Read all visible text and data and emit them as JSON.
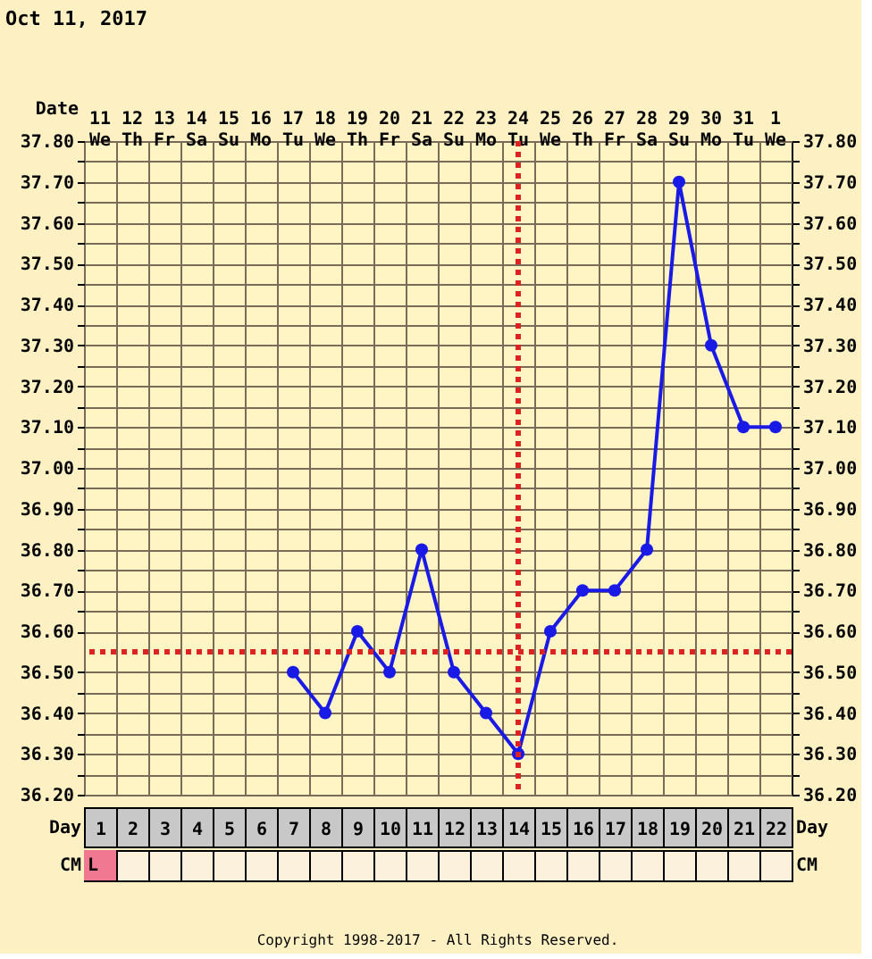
{
  "chart_data": {
    "type": "line",
    "title": "Oct 11, 2017",
    "categories": [
      "11 We",
      "12 Th",
      "13 Fr",
      "14 Sa",
      "15 Su",
      "16 Mo",
      "17 Tu",
      "18 We",
      "19 Th",
      "20 Fr",
      "21 Sa",
      "22 Su",
      "23 Mo",
      "24 Tu",
      "25 We",
      "26 Th",
      "27 Fr",
      "28 Sa",
      "29 Su",
      "30 Mo",
      "31 Tu",
      "1 We"
    ],
    "series": [
      {
        "color": "#1a1ae6",
        "values": [
          null,
          null,
          null,
          null,
          null,
          null,
          36.5,
          36.4,
          36.6,
          36.5,
          36.8,
          36.5,
          36.4,
          36.3,
          36.6,
          36.7,
          36.7,
          36.8,
          37.7,
          37.3,
          37.1,
          37.1
        ]
      }
    ],
    "ylim": [
      36.2,
      37.8
    ],
    "yticks": [
      {
        "value": 36.2,
        "label": "36.20"
      },
      {
        "value": 36.25,
        "label": null
      },
      {
        "value": 36.3,
        "label": "36.30"
      },
      {
        "value": 36.35,
        "label": null
      },
      {
        "value": 36.4,
        "label": "36.40"
      },
      {
        "value": 36.45,
        "label": null
      },
      {
        "value": 36.5,
        "label": "36.50"
      },
      {
        "value": 36.6,
        "label": "36.60"
      },
      {
        "value": 36.65,
        "label": null
      },
      {
        "value": 36.7,
        "label": "36.70"
      },
      {
        "value": 36.75,
        "label": null
      },
      {
        "value": 36.8,
        "label": "36.80"
      },
      {
        "value": 36.85,
        "label": null
      },
      {
        "value": 36.9,
        "label": "36.90"
      },
      {
        "value": 36.95,
        "label": null
      },
      {
        "value": 37.0,
        "label": "37.00"
      },
      {
        "value": 37.05,
        "label": null
      },
      {
        "value": 37.1,
        "label": "37.10"
      },
      {
        "value": 37.15,
        "label": null
      },
      {
        "value": 37.2,
        "label": "37.20"
      },
      {
        "value": 37.25,
        "label": null
      },
      {
        "value": 37.3,
        "label": "37.30"
      },
      {
        "value": 37.35,
        "label": null
      },
      {
        "value": 37.4,
        "label": "37.40"
      },
      {
        "value": 37.45,
        "label": null
      },
      {
        "value": 37.5,
        "label": "37.50"
      },
      {
        "value": 37.55,
        "label": null
      },
      {
        "value": 37.6,
        "label": "37.60"
      },
      {
        "value": 37.65,
        "label": null
      },
      {
        "value": 37.7,
        "label": "37.70"
      },
      {
        "value": 37.75,
        "label": null
      },
      {
        "value": 37.8,
        "label": "37.80"
      }
    ],
    "ref_lines": [
      {
        "axis": "x",
        "value": "24 Tu",
        "color": "#dd2222",
        "line_style": "dotted"
      },
      {
        "axis": "y",
        "value": 36.55,
        "color": "#dd2222",
        "line_style": "dotted"
      }
    ],
    "x2label": "Day",
    "x2lim": [
      0.5,
      22.5
    ],
    "x2ticks": [
      1,
      2,
      3,
      4,
      5,
      6,
      7,
      8,
      9,
      10,
      11,
      12,
      13,
      14,
      15,
      16,
      17,
      18,
      19,
      20,
      21,
      22
    ],
    "grid": true,
    "marker": "circle",
    "line_style": "solid",
    "annotations": [
      "Date",
      "CM",
      "Copyright 1998-2017 - All Rights Reserved.",
      "L"
    ]
  }
}
